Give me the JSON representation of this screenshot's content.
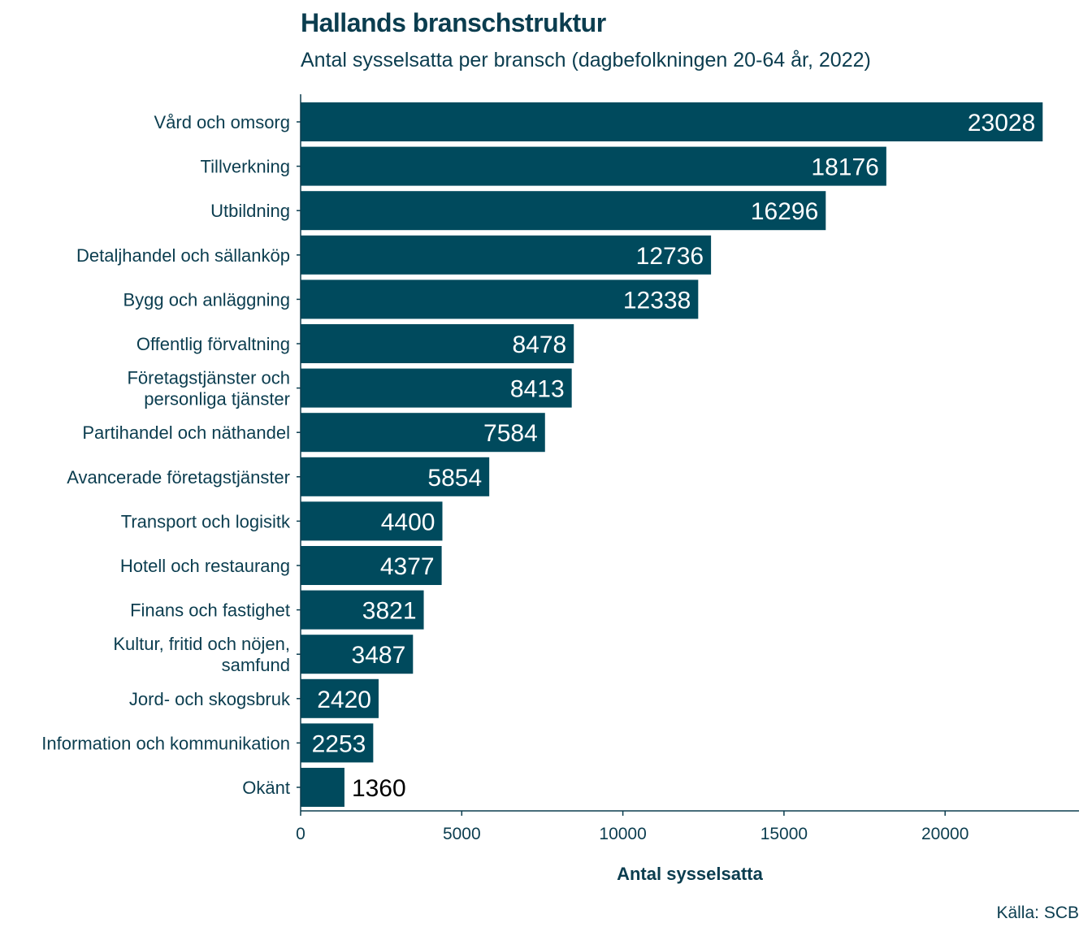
{
  "chart_data": {
    "type": "bar",
    "orientation": "horizontal",
    "title": "Hallands branschstruktur",
    "subtitle": "Antal sysselsatta per bransch (dagbefolkningen 20-64 år, 2022)",
    "caption": "Källa: SCB",
    "xlabel": "Antal sysselsatta",
    "ylabel": "",
    "xlim": [
      0,
      24000
    ],
    "x_ticks": [
      0,
      5000,
      10000,
      15000,
      20000
    ],
    "grid": false,
    "bar_color": "#004a5d",
    "text_color": "#0b3d4f",
    "label_color_inside": "#ffffff",
    "label_color_outside": "#000000",
    "categories": [
      [
        "Vård och omsorg"
      ],
      [
        "Tillverkning"
      ],
      [
        "Utbildning"
      ],
      [
        "Detaljhandel och sällanköp"
      ],
      [
        "Bygg och anläggning"
      ],
      [
        "Offentlig förvaltning"
      ],
      [
        "Företagstjänster och",
        "personliga tjänster"
      ],
      [
        "Partihandel och näthandel"
      ],
      [
        "Avancerade företagstjänster"
      ],
      [
        "Transport och logisitk"
      ],
      [
        "Hotell och restaurang"
      ],
      [
        "Finans och fastighet"
      ],
      [
        "Kultur, fritid och nöjen,",
        "samfund"
      ],
      [
        "Jord- och skogsbruk"
      ],
      [
        "Information och kommunikation"
      ],
      [
        "Okänt"
      ]
    ],
    "values": [
      23028,
      18176,
      16296,
      12736,
      12338,
      8478,
      8413,
      7584,
      5854,
      4400,
      4377,
      3821,
      3487,
      2420,
      2253,
      1360
    ]
  }
}
